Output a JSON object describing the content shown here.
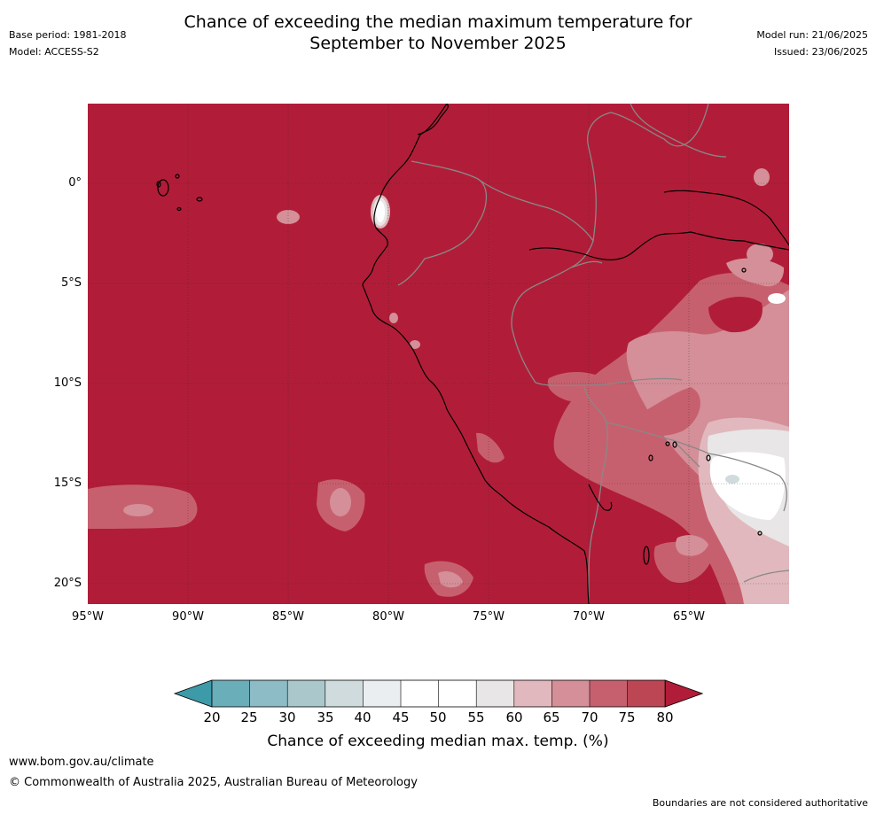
{
  "title_line1": "Chance of exceeding the median maximum temperature for",
  "title_line2": "September to November 2025",
  "meta_left": {
    "base_period": "Base period: 1981-2018",
    "model": "Model: ACCESS-S2"
  },
  "meta_right": {
    "model_run": "Model run: 21/06/2025",
    "issued": "Issued: 23/06/2025"
  },
  "map": {
    "lat_labels": [
      "0°",
      "5°S",
      "10°S",
      "15°S",
      "20°S"
    ],
    "lon_labels": [
      "95°W",
      "90°W",
      "85°W",
      "80°W",
      "75°W",
      "70°W",
      "65°W"
    ],
    "background_color": "#b11d38"
  },
  "colorbar": {
    "ticks": [
      "20",
      "25",
      "30",
      "35",
      "40",
      "45",
      "50",
      "55",
      "60",
      "65",
      "70",
      "75",
      "80"
    ],
    "colors": [
      "#3d9aa8",
      "#6aaeb9",
      "#8dbbc6",
      "#aac8cc",
      "#cfdbdd",
      "#eaeef0",
      "#ffffff",
      "#ffffff",
      "#e8e6e6",
      "#e1b8bd",
      "#d48f98",
      "#c7606e",
      "#bc4654",
      "#b11d38"
    ],
    "label": "Chance of exceeding median max. temp. (%)"
  },
  "footer": {
    "url": "www.bom.gov.au/climate",
    "copyright": "© Commonwealth of Australia 2025, Australian Bureau of Meteorology",
    "disclaimer": "Boundaries are not considered authoritative"
  }
}
